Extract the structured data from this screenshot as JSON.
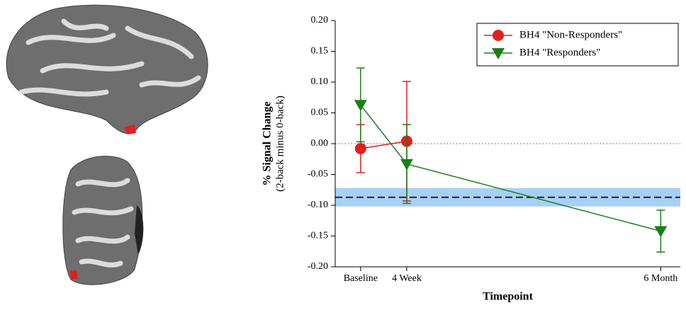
{
  "chart_data": {
    "type": "line",
    "x_label": "Timepoint",
    "y_label": [
      "% Signal Change",
      "(2-back minus 0-back)"
    ],
    "x": [
      0,
      4,
      26
    ],
    "xticks": [
      {
        "value": 0,
        "label": "Baseline"
      },
      {
        "value": 4,
        "label": "4 Week"
      },
      {
        "value": 26,
        "label": "6 Month"
      }
    ],
    "xlim": [
      -2.2,
      27.7
    ],
    "ylim": [
      -0.2,
      0.2
    ],
    "yticks": [
      {
        "value": -0.2,
        "label": "-0.20"
      },
      {
        "value": -0.15,
        "label": "-0.15"
      },
      {
        "value": -0.1,
        "label": "-0.10"
      },
      {
        "value": -0.05,
        "label": "-0.05"
      },
      {
        "value": 0,
        "label": "0.00"
      },
      {
        "value": 0.05,
        "label": "0.05"
      },
      {
        "value": 0.1,
        "label": "0.10"
      },
      {
        "value": 0.15,
        "label": "0.15"
      },
      {
        "value": 0.2,
        "label": "0.20"
      }
    ],
    "zero_line": 0,
    "reference": {
      "value": -0.087,
      "band": [
        -0.102,
        -0.072
      ],
      "color": "#a8d0f5"
    },
    "legend": "upper right",
    "series": [
      {
        "name": "BH4 \"Non-Responders\"",
        "color": "#e02020",
        "marker": "circle",
        "values": [
          -0.008,
          0.004,
          null
        ],
        "errors": [
          0.039,
          0.097,
          null
        ]
      },
      {
        "name": "BH4 \"Responders\"",
        "color": "#1a7f1a",
        "marker": "triangle-down",
        "values": [
          0.063,
          -0.033,
          -0.142
        ],
        "errors": [
          0.06,
          0.064,
          0.034
        ]
      }
    ]
  }
}
